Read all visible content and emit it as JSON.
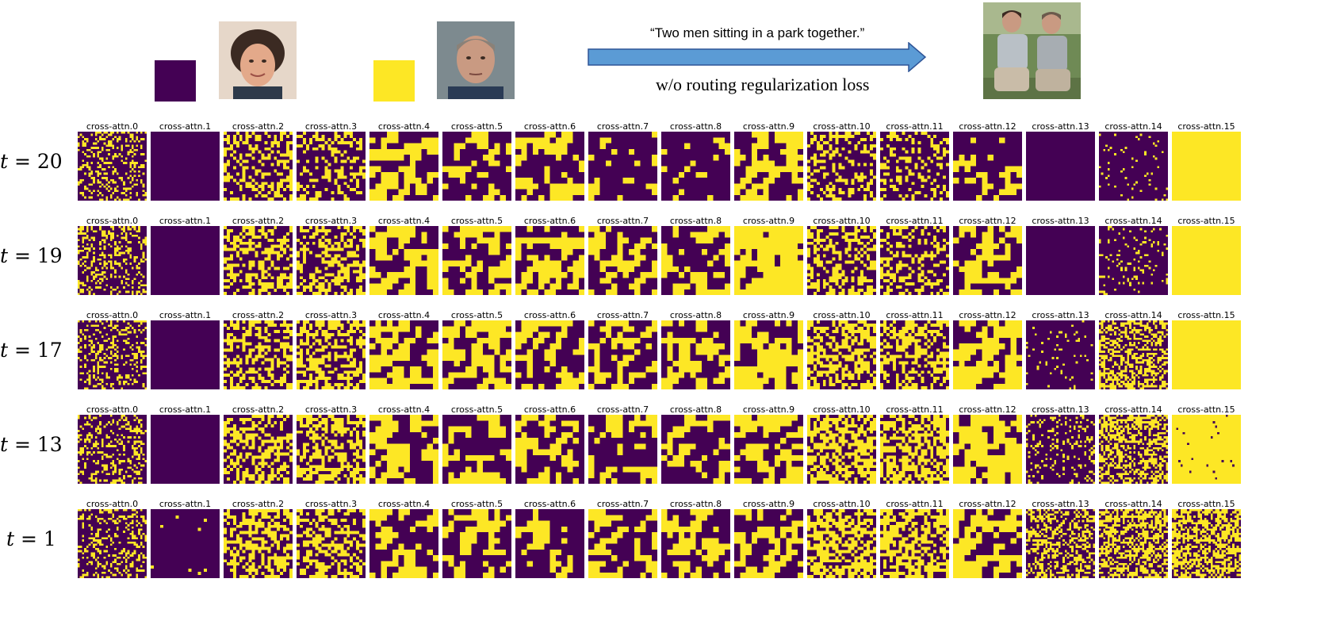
{
  "colors": {
    "purple": "#440154",
    "yellow": "#fde725",
    "arrow_fill": "#5b9bd5",
    "arrow_stroke": "#2f5597"
  },
  "header": {
    "prompt": "“Two men sitting in a park together.”",
    "caption": "w/o routing regularization loss",
    "swatch_left_color": "#440154",
    "swatch_right_color": "#fde725",
    "icons": [
      "face-photo-woman-icon",
      "face-photo-man-icon",
      "generated-image-icon",
      "right-arrow-icon"
    ]
  },
  "grid": {
    "map_labels": [
      "cross-attn.0",
      "cross-attn.1",
      "cross-attn.2",
      "cross-attn.3",
      "cross-attn.4",
      "cross-attn.5",
      "cross-attn.6",
      "cross-attn.7",
      "cross-attn.8",
      "cross-attn.9",
      "cross-attn.10",
      "cross-attn.11",
      "cross-attn.12",
      "cross-attn.13",
      "cross-attn.14",
      "cross-attn.15"
    ],
    "rows": [
      {
        "var": "t",
        "op": " = ",
        "value": "20",
        "yellow_fraction": [
          0.3,
          0.0,
          0.35,
          0.35,
          0.55,
          0.4,
          0.45,
          0.3,
          0.25,
          0.55,
          0.35,
          0.3,
          0.4,
          0.0,
          0.05,
          1.0
        ]
      },
      {
        "var": "t",
        "op": " = ",
        "value": "19",
        "yellow_fraction": [
          0.3,
          0.0,
          0.45,
          0.45,
          0.55,
          0.5,
          0.5,
          0.4,
          0.45,
          0.7,
          0.45,
          0.4,
          0.5,
          0.0,
          0.1,
          1.0
        ]
      },
      {
        "var": "t",
        "op": " = ",
        "value": "17",
        "yellow_fraction": [
          0.3,
          0.0,
          0.5,
          0.5,
          0.5,
          0.55,
          0.45,
          0.45,
          0.5,
          0.6,
          0.55,
          0.5,
          0.6,
          0.05,
          0.5,
          1.0
        ]
      },
      {
        "var": "t",
        "op": " = ",
        "value": "13",
        "yellow_fraction": [
          0.3,
          0.0,
          0.5,
          0.5,
          0.5,
          0.5,
          0.4,
          0.45,
          0.45,
          0.5,
          0.6,
          0.6,
          0.6,
          0.2,
          0.5,
          0.98
        ]
      },
      {
        "var": "t",
        "op": " = ",
        "value": "1",
        "yellow_fraction": [
          0.3,
          0.02,
          0.5,
          0.5,
          0.5,
          0.5,
          0.35,
          0.45,
          0.5,
          0.5,
          0.6,
          0.6,
          0.55,
          0.4,
          0.55,
          0.6
        ]
      }
    ]
  }
}
